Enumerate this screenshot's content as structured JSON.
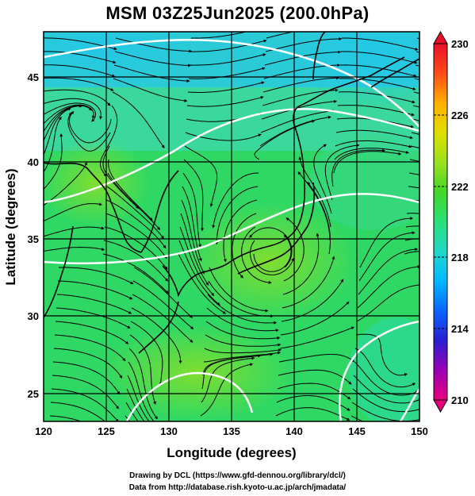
{
  "title": "MSM 03Z25Jun2025 (200.0hPa)",
  "chart_data": {
    "type": "heatmap",
    "title": "MSM 03Z25Jun2025 (200.0hPa)",
    "xlabel": "Longitude (degrees)",
    "ylabel": "Latitude  (degrees)",
    "xlim": [
      120,
      150
    ],
    "ylim": [
      22.4,
      47.6
    ],
    "x_ticks": [
      "120",
      "125",
      "130",
      "135",
      "140",
      "145",
      "150"
    ],
    "y_ticks": [
      "25",
      "30",
      "35",
      "40",
      "45"
    ],
    "grid": true,
    "overlay": "streamlines",
    "colorbar": {
      "min": 210,
      "max": 230,
      "labels": [
        "230",
        "226",
        "222",
        "218",
        "214",
        "210"
      ],
      "position": "right",
      "colors": [
        "#e6007e",
        "#9b00b4",
        "#2a1fd1",
        "#0a64ff",
        "#00b8ff",
        "#22d8c8",
        "#2be07a",
        "#44d62a",
        "#9be01e",
        "#e0e000",
        "#ffb000",
        "#ff4a1a",
        "#e8102a"
      ]
    },
    "highlighted_contours": [
      "220",
      "221",
      "220",
      "222"
    ],
    "features": [
      "anticyclone centre near 33.5N 138.5E",
      "cyclonic circulation near 38.5N 124.5E",
      "cold dome over northern Japan / Hokkaido"
    ]
  },
  "credits": {
    "line1": "Drawing by DCL (https://www.gfd-dennou.org/library/dcl/)",
    "line2": "Data from http://database.rish.kyoto-u.ac.jp/arch/jmadata/"
  }
}
